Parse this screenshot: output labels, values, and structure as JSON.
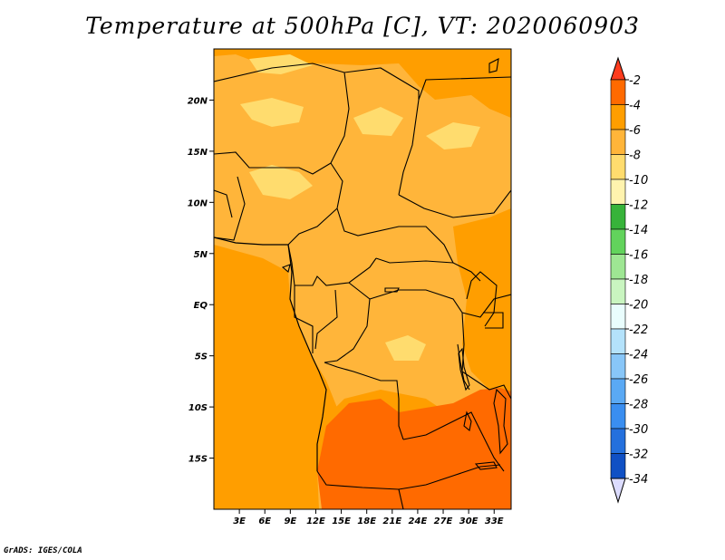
{
  "title": "Temperature at 500hPa [C], VT: 2020060903",
  "credit": "GrADS: IGES/COLA",
  "map": {
    "lat_ticks": [
      {
        "value": 20,
        "label": "20N"
      },
      {
        "value": 15,
        "label": "15N"
      },
      {
        "value": 10,
        "label": "10N"
      },
      {
        "value": 5,
        "label": "5N"
      },
      {
        "value": 0,
        "label": "EQ"
      },
      {
        "value": -5,
        "label": "5S"
      },
      {
        "value": -10,
        "label": "10S"
      },
      {
        "value": -15,
        "label": "15S"
      }
    ],
    "lon_ticks": [
      {
        "value": 3,
        "label": "3E"
      },
      {
        "value": 6,
        "label": "6E"
      },
      {
        "value": 9,
        "label": "9E"
      },
      {
        "value": 12,
        "label": "12E"
      },
      {
        "value": 15,
        "label": "15E"
      },
      {
        "value": 18,
        "label": "18E"
      },
      {
        "value": 21,
        "label": "21E"
      },
      {
        "value": 24,
        "label": "24E"
      },
      {
        "value": 27,
        "label": "27E"
      },
      {
        "value": 30,
        "label": "30E"
      },
      {
        "value": 33,
        "label": "33E"
      }
    ],
    "lon_range": [
      0,
      35
    ],
    "lat_range": [
      -20,
      25
    ]
  },
  "colorbar": {
    "levels": [
      "-2",
      "-4",
      "-6",
      "-8",
      "-10",
      "-12",
      "-14",
      "-16",
      "-18",
      "-20",
      "-22",
      "-24",
      "-26",
      "-28",
      "-30",
      "-32",
      "-34"
    ],
    "colors": [
      "#ff3c1e",
      "#ff6a00",
      "#ff9e00",
      "#ffb53a",
      "#ffdc6e",
      "#fff3ae",
      "#37b33a",
      "#62d35c",
      "#9ee693",
      "#c9f5c0",
      "#e9fdfd",
      "#b4e2fb",
      "#88c6f8",
      "#5aa9f4",
      "#3a8ef0",
      "#2470dd",
      "#1050c4",
      "#0a2ea0"
    ],
    "overflow_low_color": "#dcdcff"
  }
}
